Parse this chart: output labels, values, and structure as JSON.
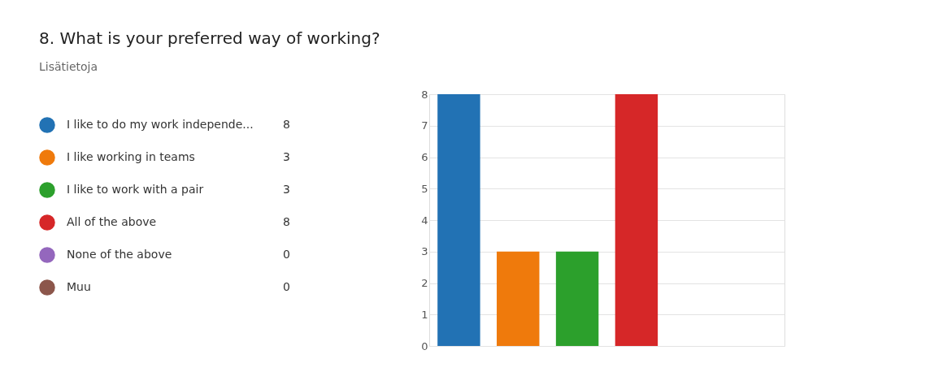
{
  "chart_data": {
    "type": "bar",
    "title": "8.  What is your preferred way of working?",
    "subtitle": "Lisätietoja",
    "categories": [
      null
    ],
    "series": [
      {
        "name": "I like to do my work independe...",
        "color": "#2272b4",
        "values": [
          8
        ]
      },
      {
        "name": "I like working in teams",
        "color": "#ef7a0c",
        "values": [
          3
        ]
      },
      {
        "name": "I like to work with a pair",
        "color": "#2ca02c",
        "values": [
          3
        ]
      },
      {
        "name": "All of the above",
        "color": "#d62728",
        "values": [
          8
        ]
      },
      {
        "name": "None of the above",
        "color": "#9467bd",
        "values": [
          0
        ]
      },
      {
        "name": "Muu",
        "color": "#8c564b",
        "values": [
          0
        ]
      }
    ],
    "ylim": [
      0,
      8
    ],
    "yticks": [
      0,
      1,
      2,
      3,
      4,
      5,
      6,
      7,
      8
    ],
    "grid": "y",
    "legend": "left",
    "annotations": [
      "8",
      "3",
      "3",
      "8",
      "0",
      "0"
    ],
    "tick_labels": "y"
  }
}
